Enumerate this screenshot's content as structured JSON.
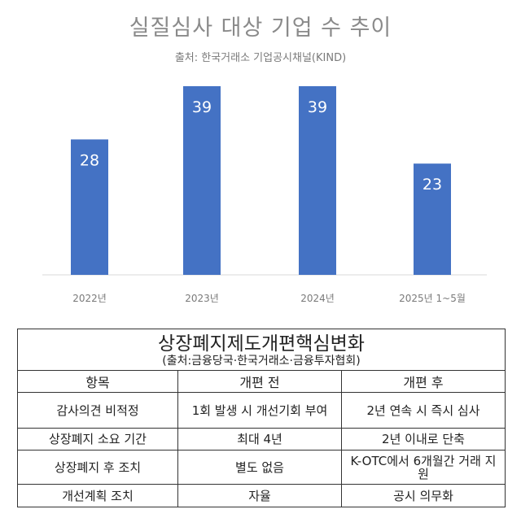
{
  "chart_data": {
    "type": "bar",
    "title": "실질심사 대상 기업 수 추이",
    "subtitle": "출처: 한국거래소 기업공시채널(KIND)",
    "categories": [
      "2022년",
      "2023년",
      "2024년",
      "2025년 1~5월"
    ],
    "values": [
      28,
      39,
      39,
      23
    ],
    "value_labels": [
      "28",
      "39",
      "39",
      "23"
    ],
    "bar_color": "#4472c4",
    "label_color": "#ffffff",
    "ylim": [
      0,
      39
    ],
    "grid": false,
    "legend": "none"
  },
  "table": {
    "title": "상장폐지제도개편핵심변화",
    "source": "(출처:금융당국·한국거래소·금융투자협회)",
    "headers": [
      "항목",
      "개편 전",
      "개편 후"
    ],
    "rows": [
      [
        "감사의견 비적정",
        "1회 발생 시 개선기회 부여",
        "2년 연속 시 즉시 심사"
      ],
      [
        "상장폐지 소요 기간",
        "최대 4년",
        "2년 이내로 단축"
      ],
      [
        "상장폐지 후 조치",
        "별도 없음",
        "K-OTC에서 6개월간 거래 지원"
      ],
      [
        "개선계획 조치",
        "자율",
        "공시 의무화"
      ]
    ]
  }
}
